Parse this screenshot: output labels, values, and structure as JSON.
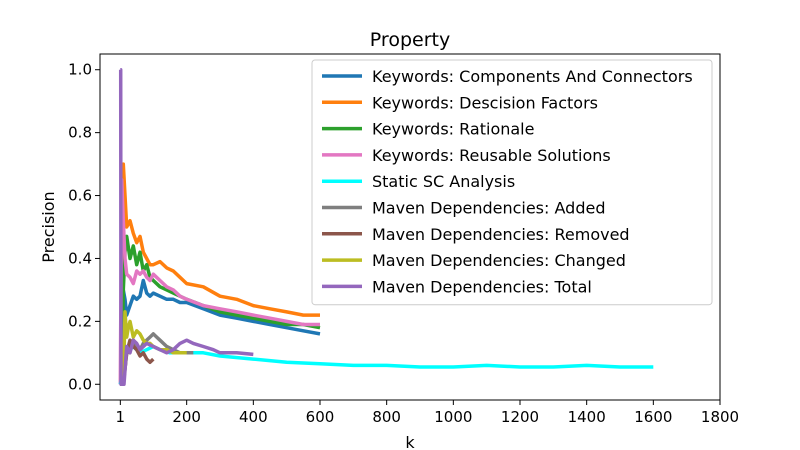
{
  "chart_data": {
    "type": "line",
    "title": "Property",
    "xlabel": "k",
    "ylabel": "Precision",
    "xlim": [
      -60,
      1800
    ],
    "ylim": [
      -0.05,
      1.05
    ],
    "x_ticks": [
      1,
      200,
      400,
      600,
      800,
      1000,
      1200,
      1400,
      1600,
      1800
    ],
    "x_tick_labels": [
      "1",
      "200",
      "400",
      "600",
      "800",
      "1000",
      "1200",
      "1400",
      "1600",
      "1800"
    ],
    "y_ticks": [
      0.0,
      0.2,
      0.4,
      0.6,
      0.8,
      1.0
    ],
    "y_tick_labels": [
      "0.0",
      "0.2",
      "0.4",
      "0.6",
      "0.8",
      "1.0"
    ],
    "legend_position": "top-right",
    "series": [
      {
        "name": "Keywords: Components And Connectors",
        "color": "#1f77b4",
        "x": [
          1,
          5,
          10,
          15,
          20,
          30,
          40,
          50,
          60,
          70,
          80,
          90,
          100,
          120,
          140,
          160,
          180,
          200,
          250,
          300,
          350,
          400,
          450,
          500,
          550,
          600
        ],
        "y": [
          0.0,
          0.0,
          0.3,
          0.27,
          0.22,
          0.25,
          0.28,
          0.27,
          0.28,
          0.33,
          0.29,
          0.28,
          0.29,
          0.28,
          0.27,
          0.27,
          0.26,
          0.26,
          0.24,
          0.22,
          0.21,
          0.2,
          0.19,
          0.18,
          0.17,
          0.16
        ]
      },
      {
        "name": "Keywords: Descision Factors",
        "color": "#ff7f0e",
        "x": [
          1,
          5,
          10,
          15,
          20,
          30,
          40,
          50,
          60,
          70,
          80,
          90,
          100,
          120,
          140,
          160,
          180,
          200,
          250,
          300,
          350,
          400,
          450,
          500,
          550,
          600
        ],
        "y": [
          0.0,
          0.0,
          0.7,
          0.6,
          0.5,
          0.52,
          0.48,
          0.45,
          0.47,
          0.42,
          0.4,
          0.38,
          0.38,
          0.39,
          0.37,
          0.36,
          0.34,
          0.32,
          0.31,
          0.28,
          0.27,
          0.25,
          0.24,
          0.23,
          0.22,
          0.22
        ]
      },
      {
        "name": "Keywords: Rationale",
        "color": "#2ca02c",
        "x": [
          1,
          5,
          10,
          15,
          20,
          30,
          40,
          50,
          60,
          70,
          80,
          90,
          100,
          120,
          140,
          160,
          180,
          200,
          250,
          300,
          350,
          400,
          450,
          500,
          550,
          600
        ],
        "y": [
          0.0,
          0.0,
          0.3,
          0.42,
          0.47,
          0.4,
          0.44,
          0.38,
          0.42,
          0.36,
          0.38,
          0.34,
          0.33,
          0.31,
          0.3,
          0.29,
          0.28,
          0.27,
          0.25,
          0.23,
          0.22,
          0.21,
          0.2,
          0.19,
          0.19,
          0.18
        ]
      },
      {
        "name": "Keywords: Reusable Solutions",
        "color": "#e377c2",
        "x": [
          1,
          5,
          10,
          15,
          20,
          30,
          40,
          50,
          60,
          70,
          80,
          90,
          100,
          120,
          140,
          160,
          180,
          200,
          250,
          300,
          350,
          400,
          450,
          500,
          550,
          600
        ],
        "y": [
          0.0,
          0.65,
          0.52,
          0.4,
          0.35,
          0.34,
          0.32,
          0.36,
          0.35,
          0.36,
          0.34,
          0.33,
          0.35,
          0.33,
          0.31,
          0.3,
          0.28,
          0.27,
          0.25,
          0.24,
          0.23,
          0.22,
          0.21,
          0.2,
          0.19,
          0.19
        ]
      },
      {
        "name": "Static SC Analysis",
        "color": "#00ffff",
        "x": [
          1,
          20,
          40,
          60,
          80,
          100,
          120,
          150,
          200,
          250,
          300,
          400,
          500,
          600,
          700,
          800,
          900,
          1000,
          1100,
          1200,
          1300,
          1400,
          1500,
          1600
        ],
        "y": [
          0.0,
          0.1,
          0.12,
          0.1,
          0.11,
          0.12,
          0.11,
          0.1,
          0.1,
          0.1,
          0.09,
          0.08,
          0.07,
          0.065,
          0.06,
          0.06,
          0.055,
          0.055,
          0.06,
          0.055,
          0.055,
          0.06,
          0.055,
          0.055
        ]
      },
      {
        "name": "Maven Dependencies: Added",
        "color": "#7f7f7f",
        "x": [
          1,
          10,
          20,
          30,
          40,
          50,
          60,
          70,
          80,
          90,
          100,
          110,
          120,
          140,
          160,
          180,
          200,
          220
        ],
        "y": [
          0.0,
          0.0,
          0.1,
          0.12,
          0.14,
          0.12,
          0.11,
          0.13,
          0.14,
          0.15,
          0.16,
          0.15,
          0.14,
          0.12,
          0.11,
          0.1,
          0.1,
          0.1
        ]
      },
      {
        "name": "Maven Dependencies: Removed",
        "color": "#8c564b",
        "x": [
          1,
          10,
          20,
          30,
          40,
          50,
          60,
          70,
          80,
          90,
          100
        ],
        "y": [
          0.0,
          0.0,
          0.1,
          0.14,
          0.12,
          0.11,
          0.09,
          0.1,
          0.08,
          0.07,
          0.08
        ]
      },
      {
        "name": "Maven Dependencies: Changed",
        "color": "#bcbd22",
        "x": [
          1,
          10,
          15,
          20,
          25,
          30,
          40,
          50,
          60,
          70,
          80,
          90,
          100,
          120,
          140,
          160,
          180,
          200
        ],
        "y": [
          0.0,
          0.0,
          0.23,
          0.15,
          0.18,
          0.2,
          0.15,
          0.17,
          0.16,
          0.14,
          0.13,
          0.13,
          0.12,
          0.11,
          0.11,
          0.1,
          0.1,
          0.1
        ]
      },
      {
        "name": "Maven Dependencies: Total",
        "color": "#9467bd",
        "x": [
          1,
          2,
          3,
          5,
          8,
          12,
          20,
          30,
          40,
          50,
          60,
          80,
          100,
          120,
          140,
          160,
          180,
          200,
          220,
          250,
          280,
          300,
          350,
          400
        ],
        "y": [
          1.0,
          1.0,
          0.0,
          0.0,
          0.0,
          0.0,
          0.12,
          0.1,
          0.14,
          0.13,
          0.11,
          0.13,
          0.12,
          0.11,
          0.1,
          0.11,
          0.13,
          0.14,
          0.13,
          0.12,
          0.11,
          0.1,
          0.1,
          0.095
        ]
      }
    ]
  }
}
